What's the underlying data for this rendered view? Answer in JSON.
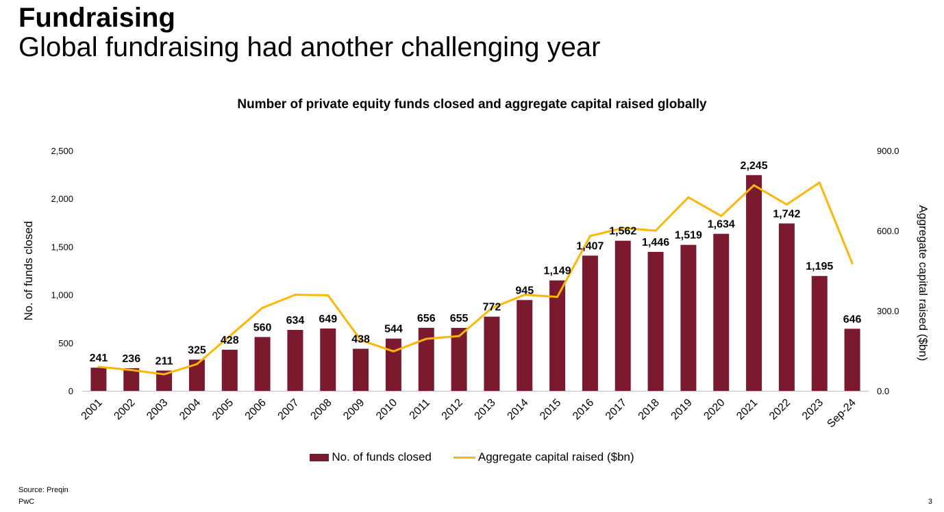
{
  "header": {
    "title": "Fundraising",
    "subtitle": "Global fundraising had another challenging year"
  },
  "footer": {
    "source": "Source: Preqin",
    "brand": "PwC",
    "page_number": "3"
  },
  "colors": {
    "bar": "#7B1A2F",
    "line": "#FFB600",
    "axis": "#BFBFBF"
  },
  "chart_data": {
    "type": "bar",
    "title": "Number of private equity funds closed and aggregate capital raised globally",
    "categories": [
      "2001",
      "2002",
      "2003",
      "2004",
      "2005",
      "2006",
      "2007",
      "2008",
      "2009",
      "2010",
      "2011",
      "2012",
      "2013",
      "2014",
      "2015",
      "2016",
      "2017",
      "2018",
      "2019",
      "2020",
      "2021",
      "2022",
      "2023",
      "Sep-24"
    ],
    "series": [
      {
        "name": "No. of funds closed",
        "type": "bar",
        "axis": "left",
        "values": [
          241,
          236,
          211,
          325,
          428,
          560,
          634,
          649,
          438,
          544,
          656,
          655,
          772,
          945,
          1149,
          1407,
          1562,
          1446,
          1519,
          1634,
          2245,
          1742,
          1195,
          646
        ],
        "labels": [
          "241",
          "236",
          "211",
          "325",
          "428",
          "560",
          "634",
          "649",
          "438",
          "544",
          "656",
          "655",
          "772",
          "945",
          "1,149",
          "1,407",
          "1,562",
          "1,446",
          "1,519",
          "1,634",
          "2,245",
          "1,742",
          "1,195",
          "646"
        ]
      },
      {
        "name": "Aggregate capital raised ($bn)",
        "type": "line",
        "axis": "right",
        "values": [
          90,
          78,
          62,
          100,
          205,
          311,
          360,
          358,
          190,
          148,
          195,
          205,
          310,
          360,
          352,
          580,
          610,
          600,
          725,
          655,
          770,
          698,
          780,
          478
        ]
      }
    ],
    "ylabel": "No. of funds closed",
    "ylabel_right": "Aggregate capital raised ($bn)",
    "ylim": [
      0,
      2500
    ],
    "ylim_right": [
      0,
      900
    ],
    "yticks": [
      0,
      500,
      1000,
      1500,
      2000,
      2500
    ],
    "ytick_labels": [
      "0",
      "500",
      "1,000",
      "1,500",
      "2,000",
      "2,500"
    ],
    "yticks_right": [
      0,
      300,
      600,
      900
    ],
    "ytick_labels_right": [
      "0.0",
      "300.0",
      "600.0",
      "900.0"
    ],
    "legend_position": "bottom",
    "grid": false
  }
}
